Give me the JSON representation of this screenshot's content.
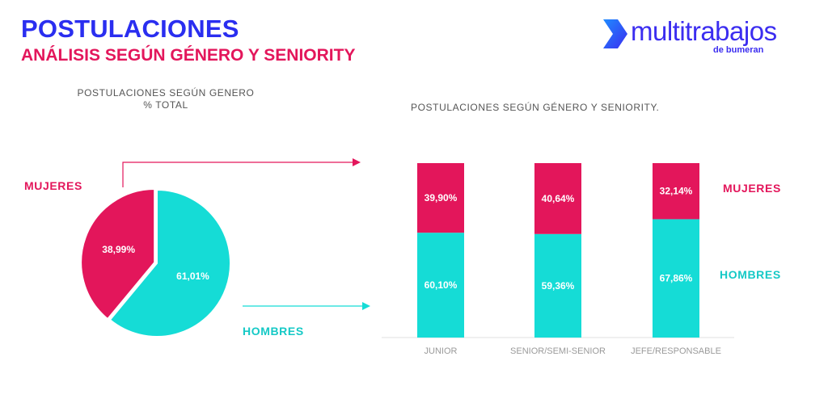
{
  "header": {
    "title": "POSTULACIONES",
    "subtitle": "ANÁLISIS SEGÚN GÉNERO Y SENIORITY"
  },
  "logo": {
    "brand": "multitrabajos",
    "tagline": "de bumeran",
    "icon": "chevron-arrow-icon"
  },
  "legend": {
    "women": "MUJERES",
    "men": "HOMBRES"
  },
  "colors": {
    "women": "#e3165b",
    "men": "#15dcd6",
    "title": "#2a2ef0",
    "arrow_women": "#e3165b",
    "arrow_men": "#15dcd6"
  },
  "chart_data": [
    {
      "type": "pie",
      "title": "POSTULACIONES SEGÚN GENERO",
      "subtitle": "% TOTAL",
      "slices": [
        {
          "name": "MUJERES",
          "value": 38.99,
          "label": "38,99%"
        },
        {
          "name": "HOMBRES",
          "value": 61.01,
          "label": "61,01%"
        }
      ]
    },
    {
      "type": "bar",
      "stacked": true,
      "title": "POSTULACIONES SEGÚN GÉNERO Y SENIORITY.",
      "categories": [
        "JUNIOR",
        "SENIOR/SEMI-SENIOR",
        "JEFE/RESPONSABLE"
      ],
      "series": [
        {
          "name": "HOMBRES",
          "values": [
            60.1,
            59.36,
            67.86
          ],
          "labels": [
            "60,10%",
            "59,36%",
            "67,86%"
          ]
        },
        {
          "name": "MUJERES",
          "values": [
            39.9,
            40.64,
            32.14
          ],
          "labels": [
            "39,90%",
            "40,64%",
            "32,14%"
          ]
        }
      ],
      "ylim": [
        0,
        100
      ]
    }
  ]
}
